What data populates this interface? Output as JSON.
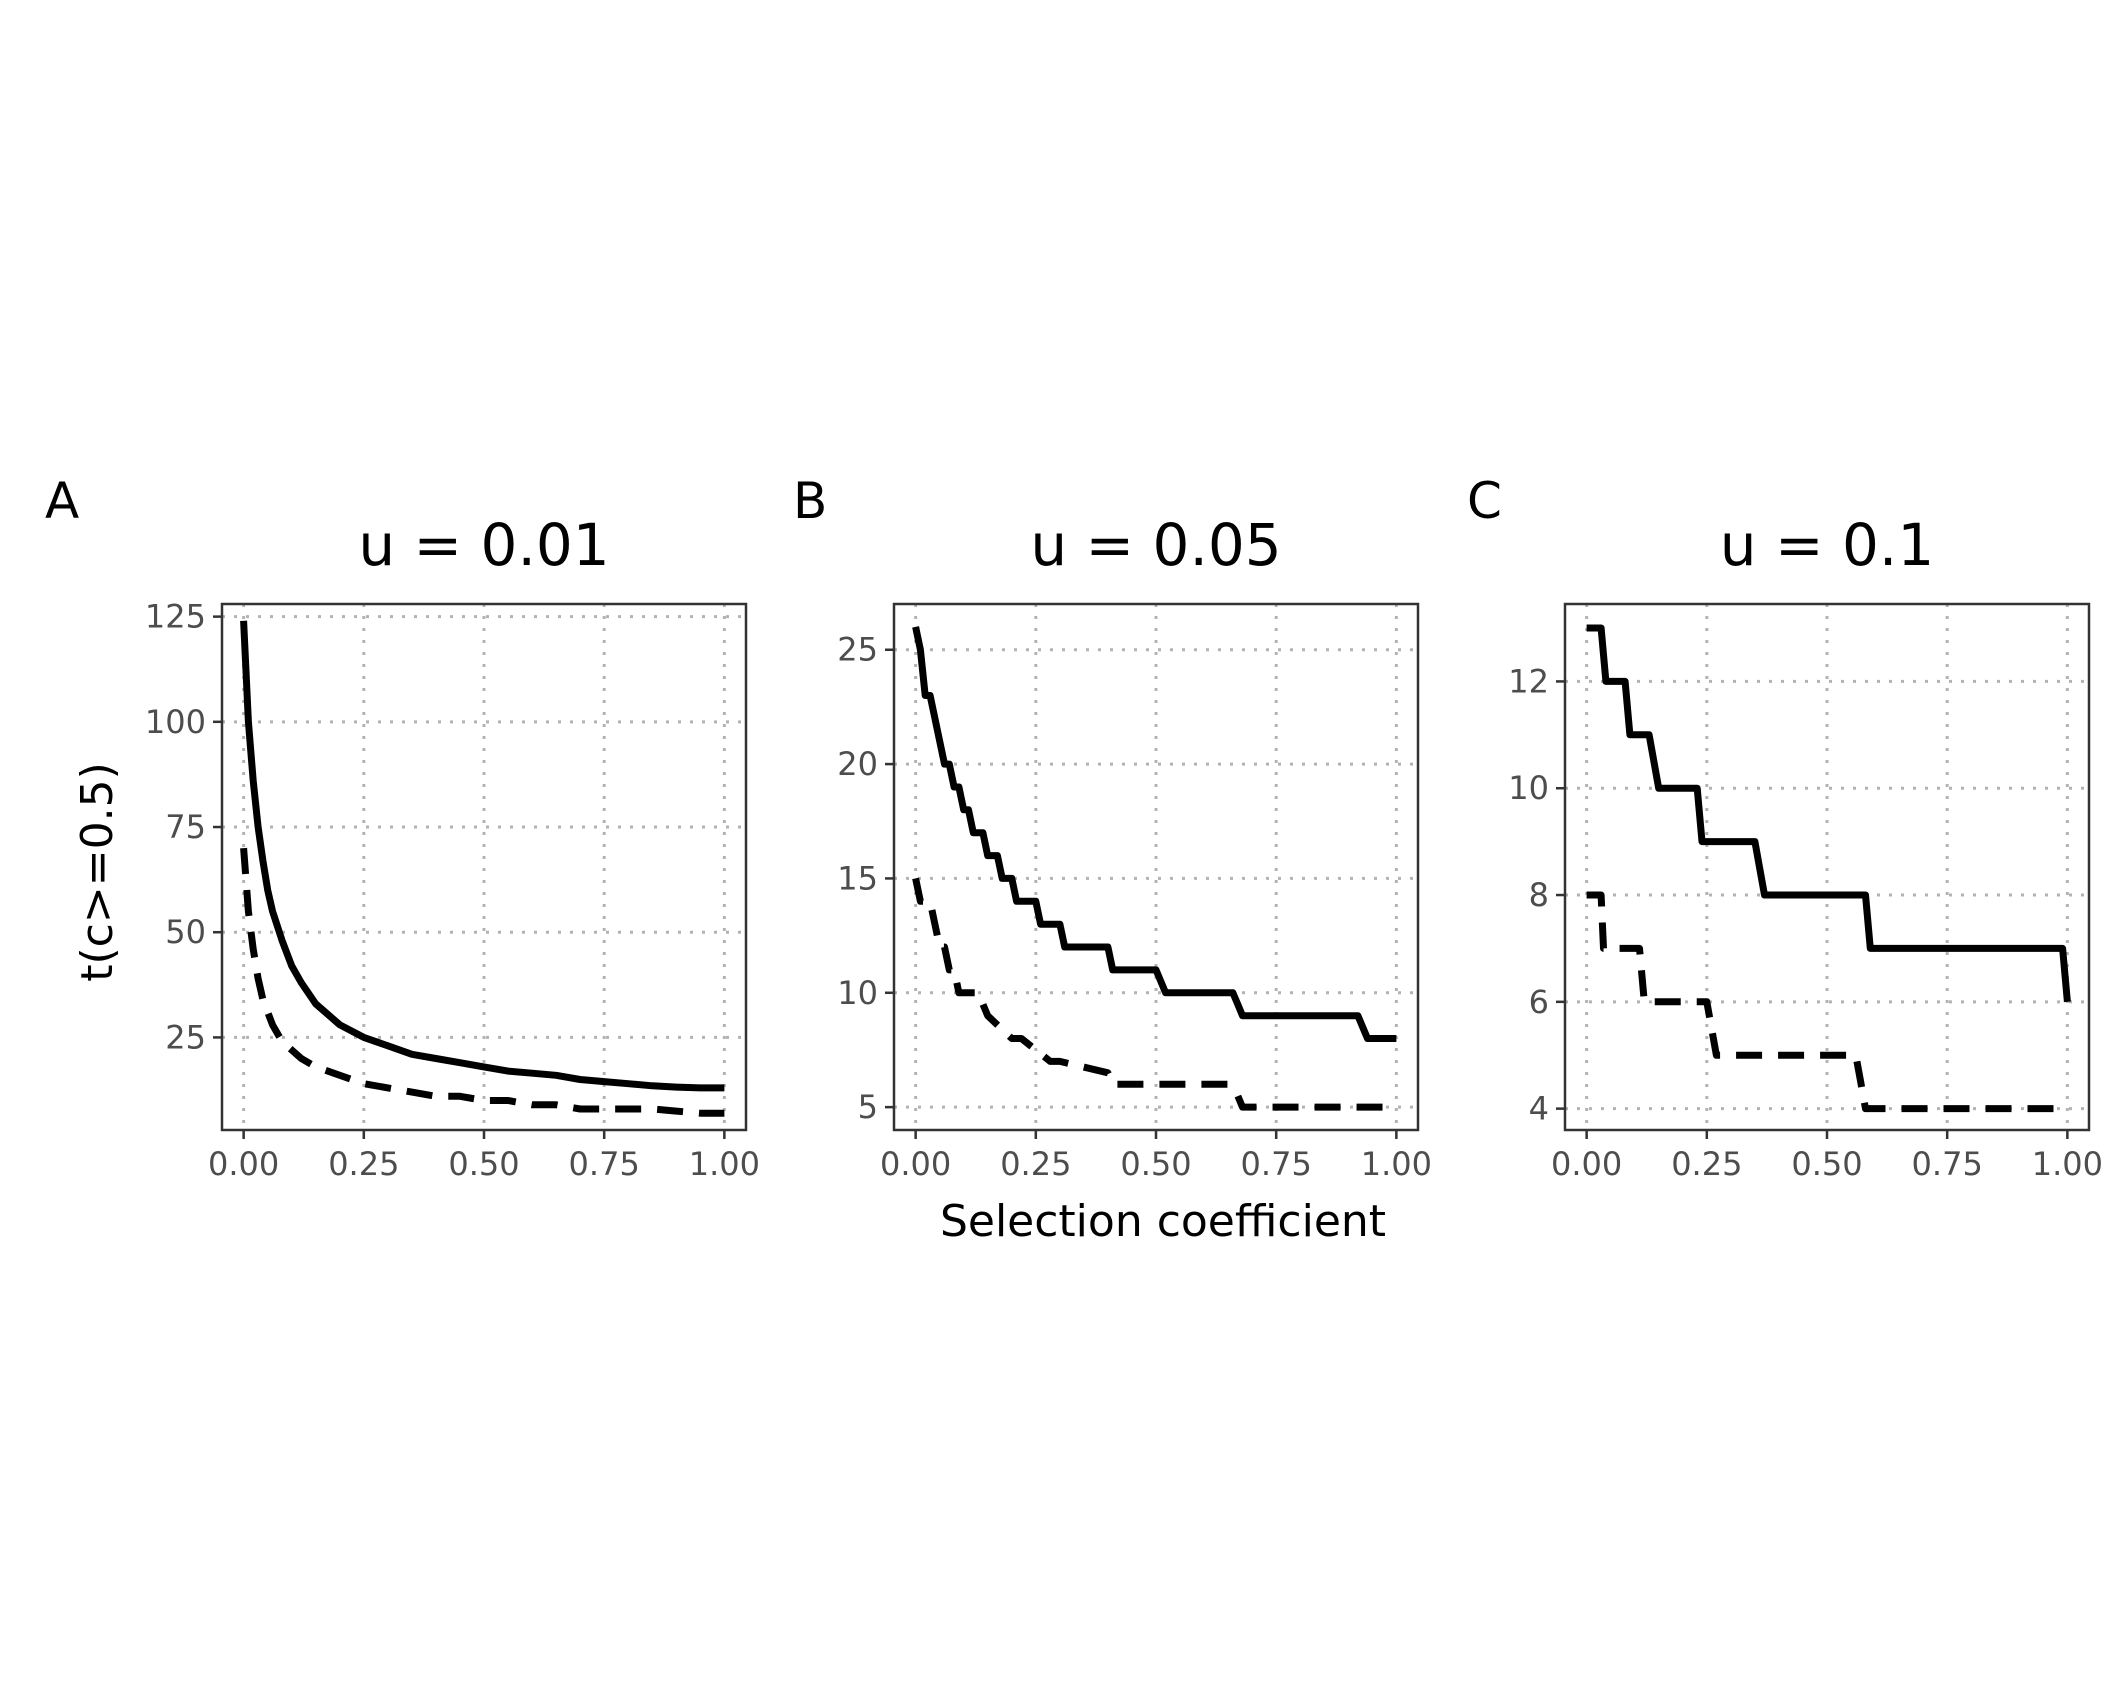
{
  "figure": {
    "ylabel": "t(c>=0.5)",
    "xlabel": "Selection coefficient"
  },
  "chart_data": [
    {
      "type": "line",
      "panel_label": "A",
      "title": "u = 0.01",
      "xlabel": "",
      "ylabel": "t(c>=0.5)",
      "xlim": [
        -0.045,
        1.045
      ],
      "ylim": [
        3,
        128
      ],
      "x_ticks": [
        0,
        0.25,
        0.5,
        0.75,
        1
      ],
      "x_tick_labels": [
        "0.00",
        "0.25",
        "0.50",
        "0.75",
        "1.00"
      ],
      "y_ticks": [
        25,
        50,
        75,
        100,
        125
      ],
      "y_tick_labels": [
        "25",
        "50",
        "75",
        "100",
        "125"
      ],
      "grid": true,
      "series": [
        {
          "style": "solid",
          "step": false,
          "x": [
            0,
            0.01,
            0.02,
            0.03,
            0.04,
            0.05,
            0.06,
            0.08,
            0.1,
            0.12,
            0.15,
            0.2,
            0.25,
            0.3,
            0.35,
            0.4,
            0.45,
            0.5,
            0.55,
            0.6,
            0.65,
            0.7,
            0.75,
            0.8,
            0.85,
            0.9,
            0.95,
            1.0
          ],
          "y": [
            124,
            100,
            86,
            75,
            67,
            60,
            55,
            48,
            42,
            38,
            33,
            28,
            25,
            23,
            21,
            20,
            19,
            18,
            17,
            16.5,
            16,
            15,
            14.5,
            14,
            13.5,
            13.2,
            13,
            13
          ]
        },
        {
          "style": "dashed",
          "step": false,
          "x": [
            0,
            0.01,
            0.02,
            0.03,
            0.04,
            0.05,
            0.06,
            0.08,
            0.1,
            0.12,
            0.15,
            0.2,
            0.25,
            0.3,
            0.35,
            0.4,
            0.45,
            0.5,
            0.55,
            0.6,
            0.65,
            0.7,
            0.75,
            0.8,
            0.85,
            0.9,
            0.95,
            1.0
          ],
          "y": [
            70,
            55,
            46,
            39,
            34,
            31,
            28,
            24,
            22,
            20,
            18,
            16,
            14,
            13,
            12,
            11,
            11,
            10,
            10,
            9,
            9,
            8,
            8,
            8,
            8,
            7.5,
            7,
            7
          ]
        }
      ]
    },
    {
      "type": "line",
      "panel_label": "B",
      "title": "u = 0.05",
      "xlabel": "Selection coefficient",
      "ylabel": "",
      "xlim": [
        -0.045,
        1.045
      ],
      "ylim": [
        4,
        27
      ],
      "x_ticks": [
        0,
        0.25,
        0.5,
        0.75,
        1
      ],
      "x_tick_labels": [
        "0.00",
        "0.25",
        "0.50",
        "0.75",
        "1.00"
      ],
      "y_ticks": [
        5,
        10,
        15,
        20,
        25
      ],
      "y_tick_labels": [
        "5",
        "10",
        "15",
        "20",
        "25"
      ],
      "grid": true,
      "series": [
        {
          "style": "solid",
          "step": false,
          "x": [
            0,
            0.01,
            0.02,
            0.03,
            0.04,
            0.05,
            0.06,
            0.07,
            0.08,
            0.09,
            0.1,
            0.11,
            0.12,
            0.13,
            0.14,
            0.15,
            0.16,
            0.17,
            0.18,
            0.19,
            0.2,
            0.21,
            0.22,
            0.23,
            0.24,
            0.25,
            0.26,
            0.27,
            0.28,
            0.29,
            0.3,
            0.31,
            0.32,
            0.33,
            0.34,
            0.35,
            0.4,
            0.41,
            0.42,
            0.45,
            0.5,
            0.51,
            0.52,
            0.6,
            0.66,
            0.67,
            0.68,
            0.75,
            0.92,
            0.93,
            0.94,
            1.0
          ],
          "y": [
            26,
            25,
            23,
            23,
            22,
            21,
            20,
            20,
            19,
            19,
            18,
            18,
            17,
            17,
            17,
            16,
            16,
            16,
            15,
            15,
            15,
            14,
            14,
            14,
            14,
            14,
            13,
            13,
            13,
            13,
            13,
            12,
            12,
            12,
            12,
            12,
            12,
            11,
            11,
            11,
            11,
            10.5,
            10,
            10,
            10,
            9.5,
            9,
            9,
            9,
            8.5,
            8,
            8
          ]
        },
        {
          "style": "dashed",
          "step": false,
          "x": [
            0,
            0.01,
            0.02,
            0.03,
            0.04,
            0.05,
            0.06,
            0.07,
            0.08,
            0.09,
            0.1,
            0.13,
            0.14,
            0.15,
            0.2,
            0.21,
            0.22,
            0.28,
            0.29,
            0.3,
            0.4,
            0.41,
            0.42,
            0.45,
            0.65,
            0.67,
            0.68,
            0.7,
            1.0
          ],
          "y": [
            15,
            14,
            14,
            14,
            13,
            12,
            12,
            11,
            11,
            10,
            10,
            10,
            9.5,
            9,
            8,
            8,
            8,
            7,
            7,
            7,
            6.5,
            6,
            6,
            6,
            6,
            5.5,
            5,
            5,
            5
          ]
        }
      ]
    },
    {
      "type": "line",
      "panel_label": "C",
      "title": "u = 0.1",
      "xlabel": "",
      "ylabel": "",
      "xlim": [
        -0.045,
        1.045
      ],
      "ylim": [
        3.6,
        13.45
      ],
      "x_ticks": [
        0,
        0.25,
        0.5,
        0.75,
        1
      ],
      "x_tick_labels": [
        "0.00",
        "0.25",
        "0.50",
        "0.75",
        "1.00"
      ],
      "y_ticks": [
        4,
        6,
        8,
        10,
        12
      ],
      "y_tick_labels": [
        "4",
        "6",
        "8",
        "10",
        "12"
      ],
      "grid": true,
      "series": [
        {
          "style": "solid",
          "step": false,
          "x": [
            0,
            0.03,
            0.04,
            0.08,
            0.09,
            0.13,
            0.15,
            0.23,
            0.24,
            0.35,
            0.37,
            0.58,
            0.59,
            0.99,
            1.0
          ],
          "y": [
            13,
            13,
            12,
            12,
            11,
            11,
            10,
            10,
            9,
            9,
            8,
            8,
            7,
            7,
            6
          ]
        },
        {
          "style": "dashed",
          "step": false,
          "x": [
            0,
            0.03,
            0.035,
            0.11,
            0.12,
            0.25,
            0.26,
            0.27,
            0.55,
            0.56,
            0.57,
            0.58,
            1.0
          ],
          "y": [
            8,
            8,
            7,
            7,
            6,
            6,
            5.5,
            5,
            5,
            5,
            4.5,
            4,
            4
          ]
        }
      ]
    }
  ]
}
